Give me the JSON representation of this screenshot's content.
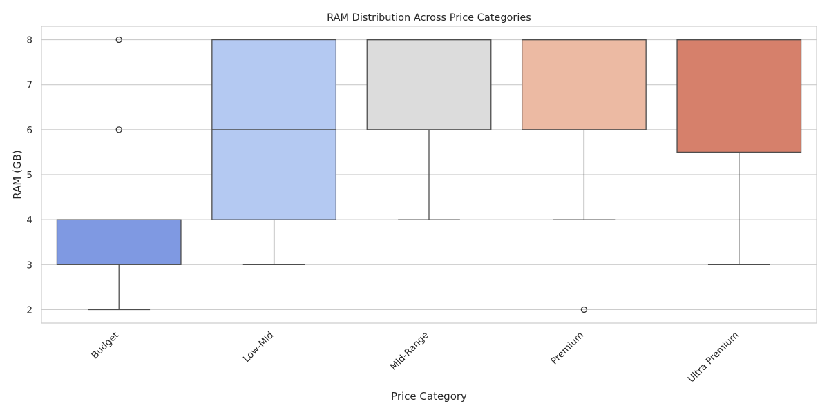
{
  "chart_data": {
    "type": "box",
    "title": "RAM Distribution Across Price Categories",
    "xlabel": "Price Category",
    "ylabel": "RAM (GB)",
    "ylim": [
      1.7,
      8.3
    ],
    "yticks": [
      2,
      3,
      4,
      5,
      6,
      7,
      8
    ],
    "grid": true,
    "categories": [
      "Budget",
      "Low-Mid",
      "Mid-Range",
      "Premium",
      "Ultra Premium"
    ],
    "boxes": [
      {
        "category": "Budget",
        "whisker_low": 2,
        "q1": 3,
        "median": 4,
        "q3": 4,
        "whisker_high": 4,
        "outliers": [
          6,
          8
        ],
        "color": "#7f99e2"
      },
      {
        "category": "Low-Mid",
        "whisker_low": 3,
        "q1": 4,
        "median": 6,
        "q3": 8,
        "whisker_high": 8,
        "outliers": [],
        "color": "#b4c9f2"
      },
      {
        "category": "Mid-Range",
        "whisker_low": 4,
        "q1": 6,
        "median": 8,
        "q3": 8,
        "whisker_high": 8,
        "outliers": [],
        "color": "#dcdcdc"
      },
      {
        "category": "Premium",
        "whisker_low": 4,
        "q1": 6,
        "median": 8,
        "q3": 8,
        "whisker_high": 8,
        "outliers": [
          2
        ],
        "color": "#ecbaa3"
      },
      {
        "category": "Ultra Premium",
        "whisker_low": 3,
        "q1": 5.5,
        "median": 8,
        "q3": 8,
        "whisker_high": 8,
        "outliers": [],
        "color": "#d6806b"
      }
    ]
  }
}
